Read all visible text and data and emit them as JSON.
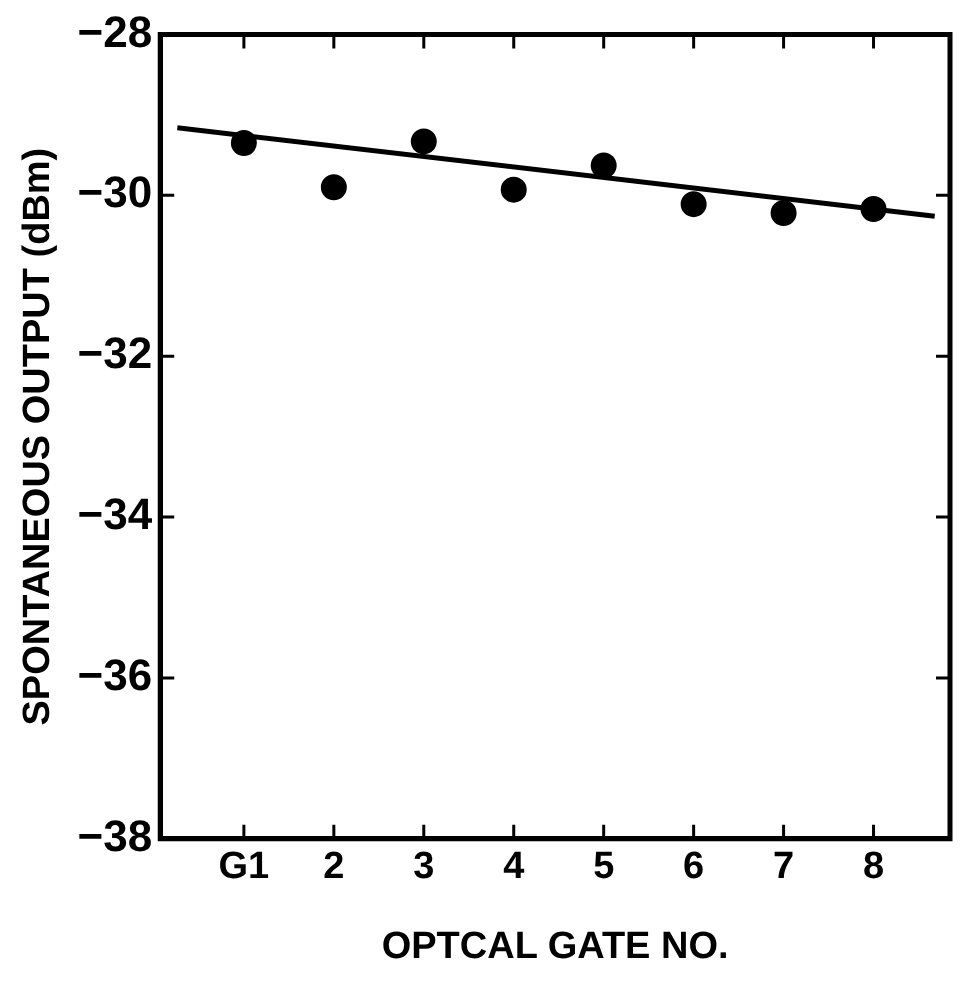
{
  "chart_data": {
    "type": "scatter",
    "xlabel": "OPTCAL GATE NO.",
    "ylabel": "SPONTANEOUS OUTPUT (dBm)",
    "x": [
      1,
      2,
      3,
      4,
      5,
      6,
      7,
      8
    ],
    "series": [
      {
        "color": "#000000",
        "marker": "circle",
        "values": [
          -29.35,
          -29.9,
          -29.33,
          -29.93,
          -29.63,
          -30.11,
          -30.22,
          -30.17
        ]
      },
      {
        "type": "line",
        "color": "#000000",
        "marker": "none",
        "line_style": "solid",
        "x": [
          0.26,
          8.68
        ],
        "values": [
          -29.16,
          -30.26
        ]
      }
    ],
    "xlim": [
      0.07,
      8.85
    ],
    "xticks": [
      {
        "value": 1,
        "label": "G1"
      },
      2,
      3,
      4,
      5,
      6,
      7,
      8
    ],
    "ylim": [
      -38,
      -28
    ],
    "yticks": [
      -38,
      -36,
      -34,
      -32,
      -30,
      -28
    ],
    "grid": false,
    "legend": false
  }
}
